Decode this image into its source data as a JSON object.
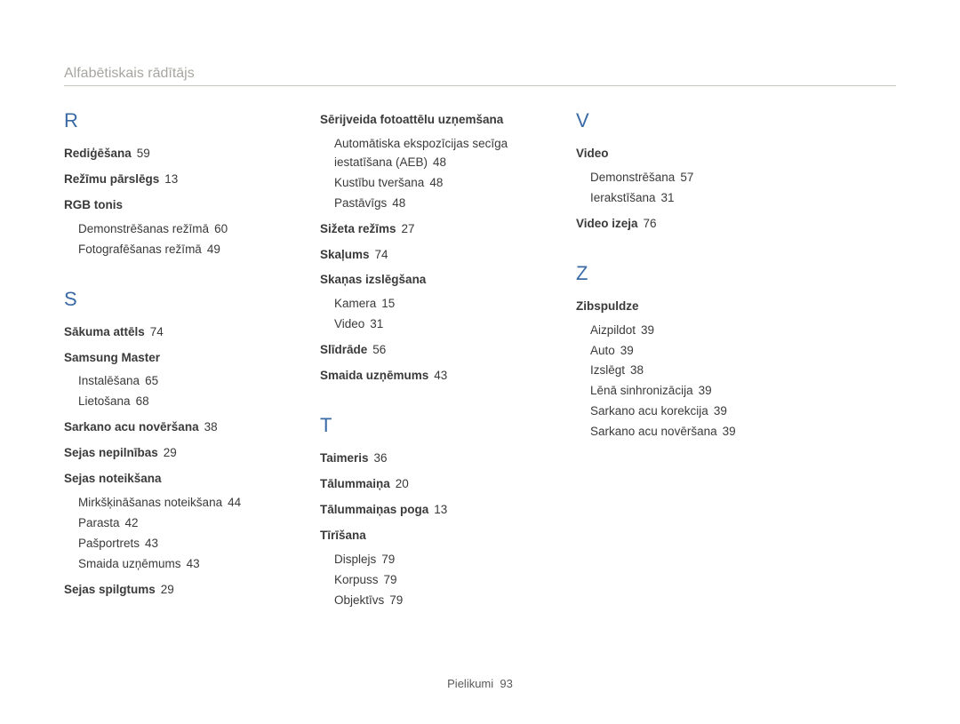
{
  "header": "Alfabētiskais rādītājs",
  "footer": {
    "label": "Pielikumi",
    "page": "93"
  },
  "letters": {
    "R": "R",
    "S": "S",
    "T": "T",
    "V": "V",
    "Z": "Z"
  },
  "col1": {
    "r1": {
      "label": "Rediģēšana",
      "page": "59"
    },
    "r2": {
      "label": "Režīmu pārslēgs",
      "page": "13"
    },
    "r3": {
      "label": "RGB tonis"
    },
    "r3a": {
      "label": "Demonstrēšanas režīmā",
      "page": "60"
    },
    "r3b": {
      "label": "Fotografēšanas režīmā",
      "page": "49"
    },
    "s1": {
      "label": "Sākuma attēls",
      "page": "74"
    },
    "s2": {
      "label": "Samsung Master"
    },
    "s2a": {
      "label": "Instalēšana",
      "page": "65"
    },
    "s2b": {
      "label": "Lietošana",
      "page": "68"
    },
    "s3": {
      "label": "Sarkano acu novēršana",
      "page": "38"
    },
    "s4": {
      "label": "Sejas nepilnības",
      "page": "29"
    },
    "s5": {
      "label": "Sejas noteikšana"
    },
    "s5a": {
      "label": "Mirkšķināšanas noteikšana",
      "page": "44"
    },
    "s5b": {
      "label": "Parasta",
      "page": "42"
    },
    "s5c": {
      "label": "Pašportrets",
      "page": "43"
    },
    "s5d": {
      "label": "Smaida uzņēmums",
      "page": "43"
    },
    "s6": {
      "label": "Sejas spilgtums",
      "page": "29"
    }
  },
  "col2": {
    "s7": {
      "label": "Sērijveida fotoattēlu uzņemšana"
    },
    "s7a": {
      "label": "Automātiska ekspozīcijas secīga iestatīšana (AEB)",
      "page": "48"
    },
    "s7b": {
      "label": "Kustību tveršana",
      "page": "48"
    },
    "s7c": {
      "label": "Pastāvīgs",
      "page": "48"
    },
    "s8": {
      "label": "Sižeta režīms",
      "page": "27"
    },
    "s9": {
      "label": "Skaļums",
      "page": "74"
    },
    "s10": {
      "label": "Skaņas izslēgšana"
    },
    "s10a": {
      "label": "Kamera",
      "page": "15"
    },
    "s10b": {
      "label": "Video",
      "page": "31"
    },
    "s11": {
      "label": "Slīdrāde",
      "page": "56"
    },
    "s12": {
      "label": "Smaida uzņēmums",
      "page": "43"
    },
    "t1": {
      "label": "Taimeris",
      "page": "36"
    },
    "t2": {
      "label": "Tālummaiņa",
      "page": "20"
    },
    "t3": {
      "label": "Tālummaiņas poga",
      "page": "13"
    },
    "t4": {
      "label": "Tīrīšana"
    },
    "t4a": {
      "label": "Displejs",
      "page": "79"
    },
    "t4b": {
      "label": "Korpuss",
      "page": "79"
    },
    "t4c": {
      "label": "Objektīvs",
      "page": "79"
    }
  },
  "col3": {
    "v1": {
      "label": "Video"
    },
    "v1a": {
      "label": "Demonstrēšana",
      "page": "57"
    },
    "v1b": {
      "label": "Ierakstīšana",
      "page": "31"
    },
    "v2": {
      "label": "Video izeja",
      "page": "76"
    },
    "z1": {
      "label": "Zibspuldze"
    },
    "z1a": {
      "label": "Aizpildot",
      "page": "39"
    },
    "z1b": {
      "label": "Auto",
      "page": "39"
    },
    "z1c": {
      "label": "Izslēgt",
      "page": "38"
    },
    "z1d": {
      "label": "Lēnā sinhronizācija",
      "page": "39"
    },
    "z1e": {
      "label": "Sarkano acu korekcija",
      "page": "39"
    },
    "z1f": {
      "label": "Sarkano acu novēršana",
      "page": "39"
    }
  }
}
